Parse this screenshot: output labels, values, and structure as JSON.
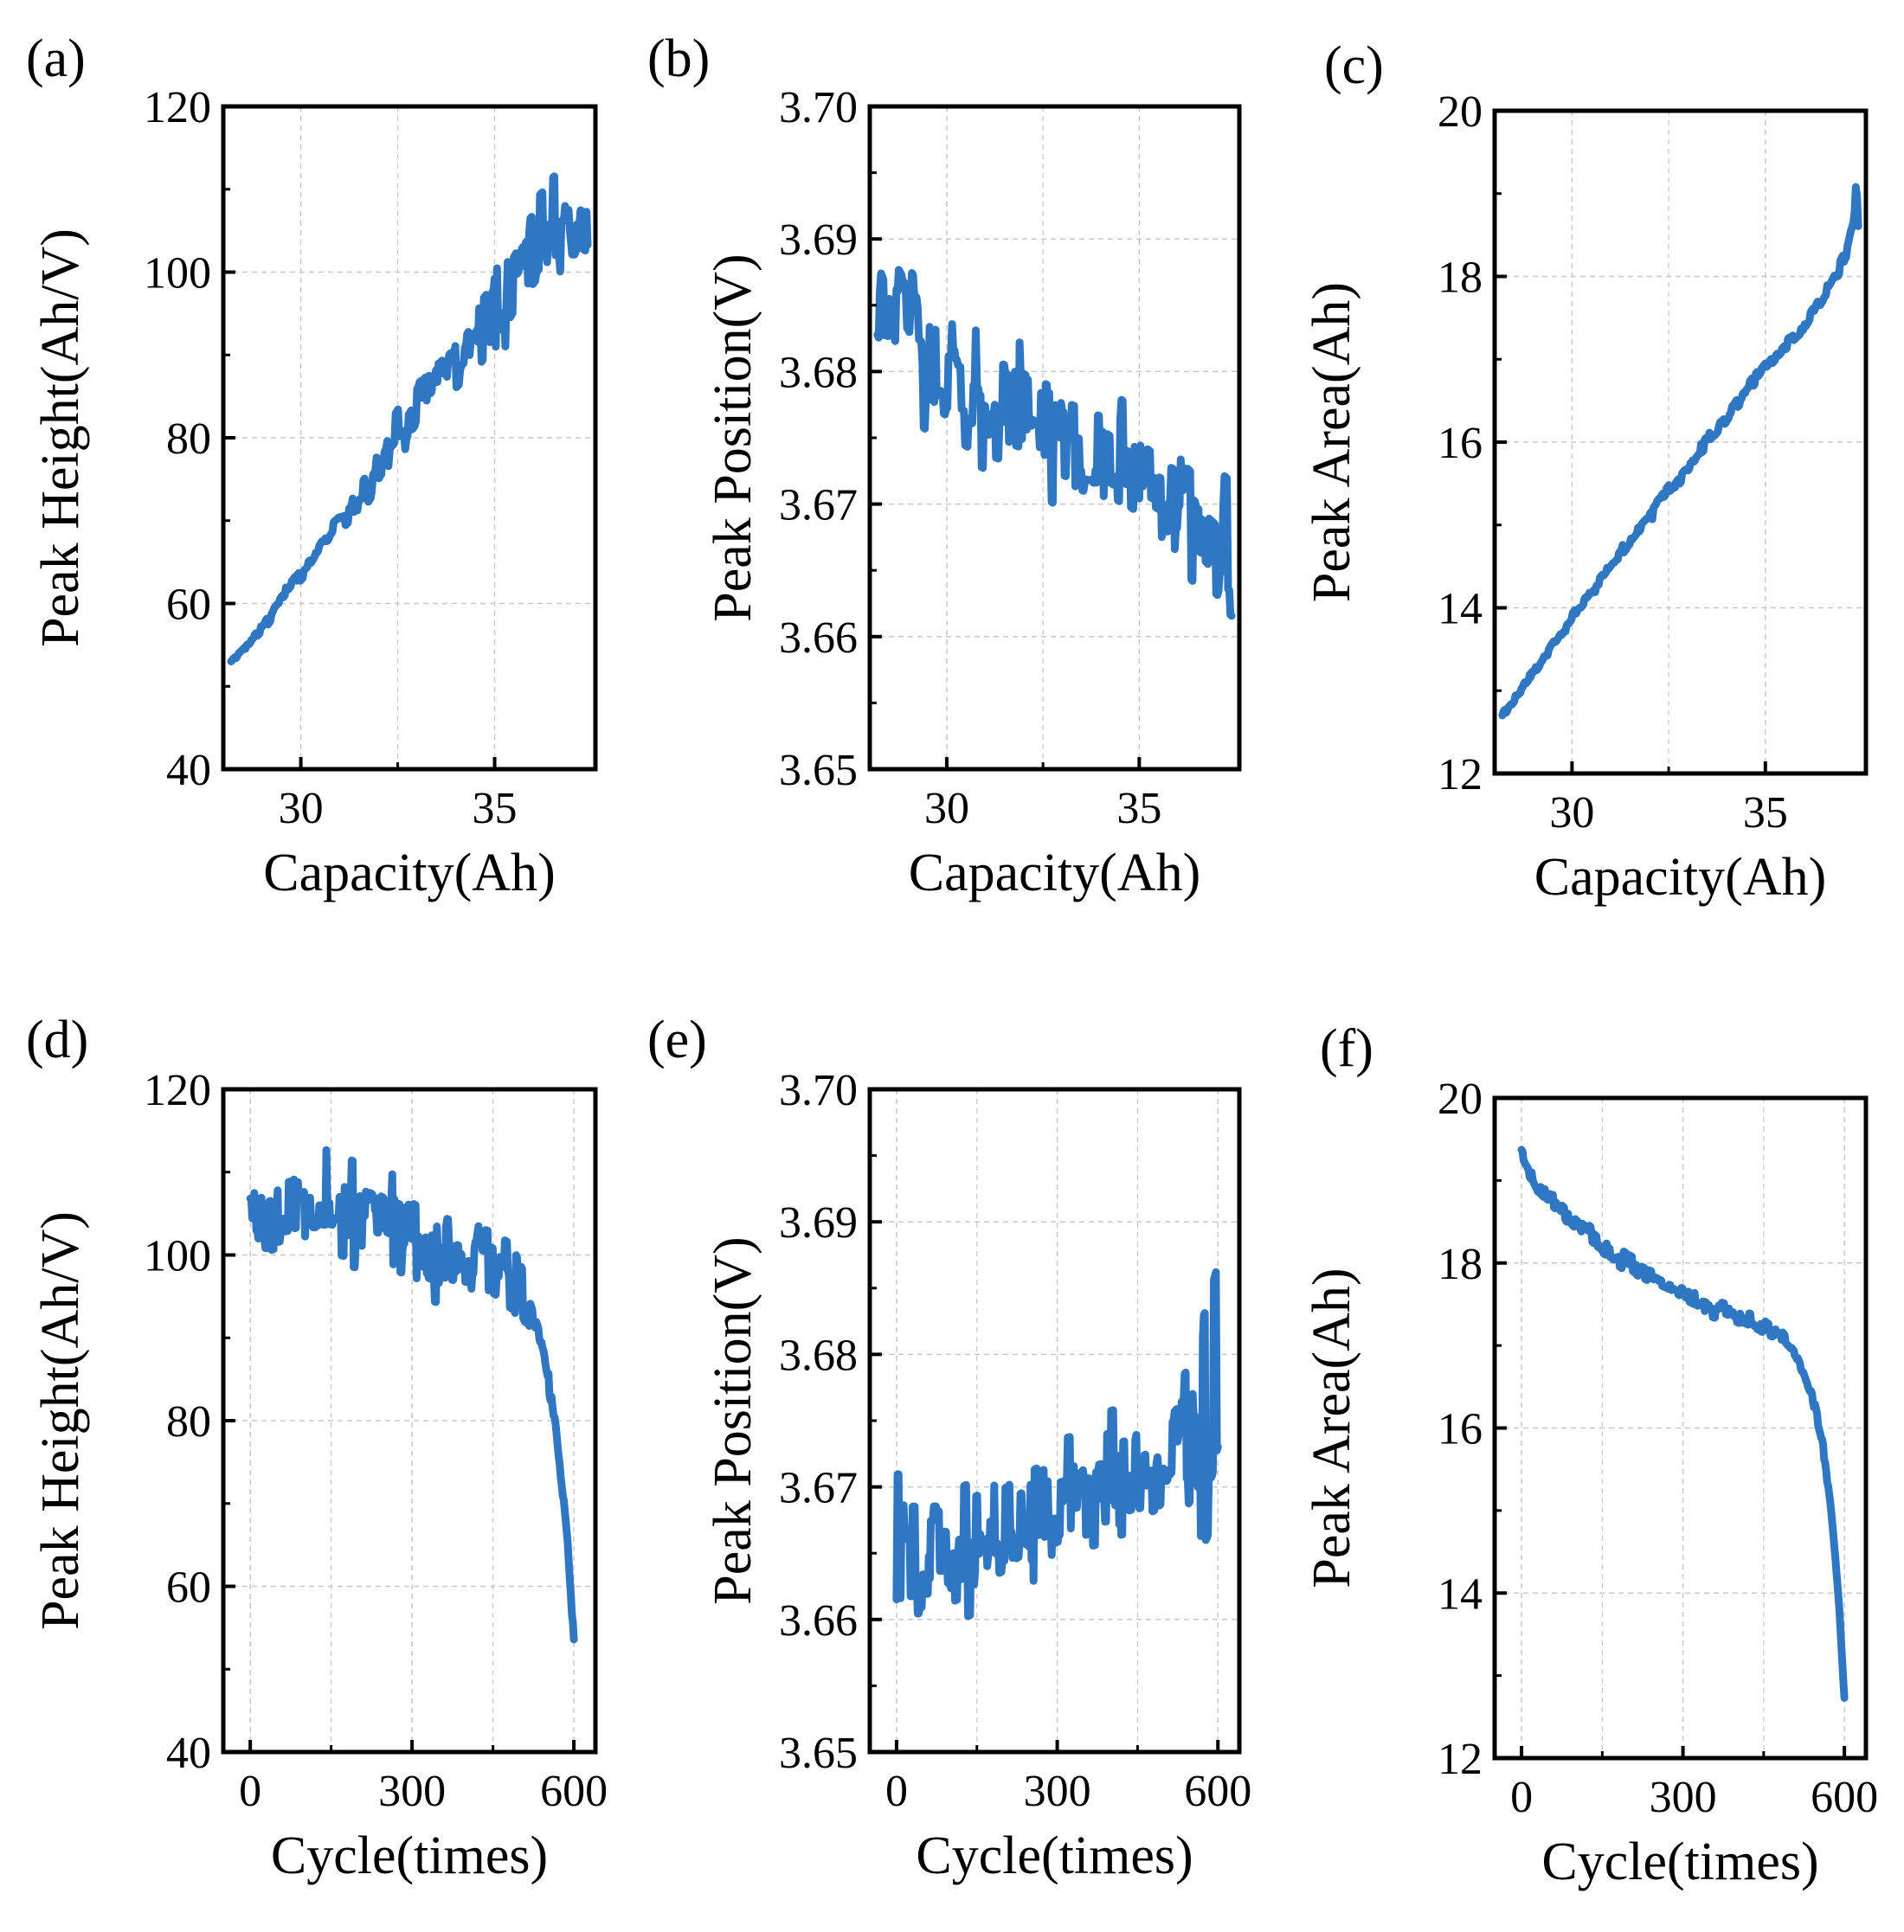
{
  "figure": {
    "line_color": "#2f77c2",
    "axis_color": "#000000",
    "grid_color": "#c8c8c8"
  },
  "chart_data": [
    {
      "panel": "(a)",
      "type": "line",
      "xlabel": "Capacity(Ah)",
      "ylabel": "Peak Height(Ah/V)",
      "xlim": [
        28.0,
        37.6
      ],
      "ylim": [
        40,
        120
      ],
      "xticks": [
        30,
        35
      ],
      "xtick_labels": [
        "30",
        "35"
      ],
      "yticks": [
        40,
        60,
        80,
        100,
        120
      ],
      "ytick_labels": [
        "40",
        "60",
        "80",
        "100",
        "120"
      ],
      "decimals": 0,
      "grid": true,
      "series": [
        {
          "name": "Peak Height",
          "x_start": 28.2,
          "x_end": 37.4,
          "n": 300,
          "anchors": [
            [
              28.2,
              53
            ],
            [
              29.0,
              57
            ],
            [
              29.7,
              62
            ],
            [
              30.3,
              65
            ],
            [
              30.8,
              69
            ],
            [
              31.4,
              72
            ],
            [
              32.0,
              76
            ],
            [
              32.5,
              80
            ],
            [
              33.0,
              84
            ],
            [
              33.6,
              87
            ],
            [
              34.2,
              90
            ],
            [
              34.7,
              94
            ],
            [
              35.2,
              97
            ],
            [
              35.7,
              101
            ],
            [
              36.2,
              104
            ],
            [
              36.7,
              106
            ],
            [
              37.1,
              106
            ],
            [
              37.4,
              105
            ]
          ],
          "noise": [
            [
              28.2,
              0.5
            ],
            [
              31.0,
              1.5
            ],
            [
              32.0,
              4
            ],
            [
              34.5,
              6
            ],
            [
              35.5,
              9
            ],
            [
              37.4,
              9
            ]
          ],
          "seed": 11
        }
      ]
    },
    {
      "panel": "(b)",
      "type": "line",
      "xlabel": "Capacity(Ah)",
      "ylabel": "Peak Position(V)",
      "xlim": [
        28.0,
        37.6
      ],
      "ylim": [
        3.65,
        3.7
      ],
      "xticks": [
        30,
        35
      ],
      "xtick_labels": [
        "30",
        "35"
      ],
      "yticks": [
        3.65,
        3.66,
        3.67,
        3.68,
        3.69,
        3.7
      ],
      "ytick_labels": [
        "3.65",
        "3.66",
        "3.67",
        "3.68",
        "3.69",
        "3.70"
      ],
      "decimals": 3,
      "grid": true,
      "series": [
        {
          "name": "Peak Position",
          "x_start": 28.2,
          "x_end": 37.4,
          "n": 300,
          "anchors": [
            [
              28.2,
              3.688
            ],
            [
              28.6,
              3.685
            ],
            [
              29.2,
              3.682
            ],
            [
              30.0,
              3.68
            ],
            [
              31.0,
              3.678
            ],
            [
              32.0,
              3.677
            ],
            [
              33.0,
              3.675
            ],
            [
              34.0,
              3.674
            ],
            [
              35.0,
              3.672
            ],
            [
              36.0,
              3.67
            ],
            [
              37.0,
              3.667
            ],
            [
              37.4,
              3.666
            ]
          ],
          "noise": [
            [
              28.2,
              0.008
            ],
            [
              30.0,
              0.007
            ],
            [
              33.0,
              0.007
            ],
            [
              35.0,
              0.007
            ],
            [
              37.4,
              0.008
            ]
          ],
          "seed": 23
        }
      ]
    },
    {
      "panel": "(c)",
      "type": "line",
      "xlabel": "Capacity(Ah)",
      "ylabel": "Peak Area(Ah)",
      "xlim": [
        28.0,
        37.6
      ],
      "ylim": [
        12,
        20
      ],
      "xticks": [
        30,
        35
      ],
      "xtick_labels": [
        "30",
        "35"
      ],
      "yticks": [
        12,
        14,
        16,
        18,
        20
      ],
      "ytick_labels": [
        "12",
        "14",
        "16",
        "18",
        "20"
      ],
      "decimals": 2,
      "grid": true,
      "series": [
        {
          "name": "Peak Area",
          "x_start": 28.2,
          "x_end": 37.4,
          "n": 300,
          "anchors": [
            [
              28.2,
              12.7
            ],
            [
              29.0,
              13.2
            ],
            [
              30.0,
              13.9
            ],
            [
              31.0,
              14.5
            ],
            [
              32.0,
              15.1
            ],
            [
              33.0,
              15.7
            ],
            [
              34.0,
              16.3
            ],
            [
              35.0,
              16.9
            ],
            [
              36.0,
              17.4
            ],
            [
              36.7,
              17.9
            ],
            [
              37.1,
              18.3
            ],
            [
              37.3,
              18.7
            ],
            [
              37.35,
              19.2
            ],
            [
              37.4,
              18.6
            ]
          ],
          "noise": [
            [
              28.2,
              0.08
            ],
            [
              37.4,
              0.12
            ]
          ],
          "seed": 37
        }
      ]
    },
    {
      "panel": "(d)",
      "type": "line",
      "xlabel": "Cycle(times)",
      "ylabel": "Peak Height(Ah/V)",
      "xlim": [
        -50,
        640
      ],
      "ylim": [
        40,
        120
      ],
      "xticks": [
        0,
        300,
        600
      ],
      "xtick_labels": [
        "0",
        "300",
        "600"
      ],
      "yticks": [
        40,
        60,
        80,
        100,
        120
      ],
      "ytick_labels": [
        "40",
        "60",
        "80",
        "100",
        "120"
      ],
      "decimals": 0,
      "grid": true,
      "series": [
        {
          "name": "Peak Height",
          "x_start": 0,
          "x_end": 600,
          "n": 320,
          "anchors": [
            [
              0,
              104
            ],
            [
              50,
              105
            ],
            [
              100,
              106
            ],
            [
              150,
              106
            ],
            [
              200,
              105
            ],
            [
              260,
              103
            ],
            [
              320,
              101
            ],
            [
              380,
              100
            ],
            [
              440,
              99
            ],
            [
              490,
              97
            ],
            [
              520,
              93
            ],
            [
              540,
              89
            ],
            [
              560,
              82
            ],
            [
              575,
              74
            ],
            [
              590,
              64
            ],
            [
              600,
              53
            ]
          ],
          "noise": [
            [
              0,
              8
            ],
            [
              300,
              9
            ],
            [
              500,
              9
            ],
            [
              520,
              3
            ],
            [
              600,
              1
            ]
          ],
          "seed": 41
        }
      ]
    },
    {
      "panel": "(e)",
      "type": "line",
      "xlabel": "Cycle(times)",
      "ylabel": "Peak Position(V)",
      "xlim": [
        -50,
        640
      ],
      "ylim": [
        3.65,
        3.7
      ],
      "xticks": [
        0,
        300,
        600
      ],
      "xtick_labels": [
        "0",
        "300",
        "600"
      ],
      "yticks": [
        3.65,
        3.66,
        3.67,
        3.68,
        3.69,
        3.7
      ],
      "ytick_labels": [
        "3.65",
        "3.66",
        "3.67",
        "3.68",
        "3.69",
        "3.70"
      ],
      "decimals": 3,
      "grid": true,
      "series": [
        {
          "name": "Peak Position",
          "x_start": 0,
          "x_end": 600,
          "n": 320,
          "anchors": [
            [
              0,
              3.665
            ],
            [
              100,
              3.665
            ],
            [
              200,
              3.667
            ],
            [
              300,
              3.669
            ],
            [
              400,
              3.67
            ],
            [
              480,
              3.671
            ],
            [
              540,
              3.674
            ],
            [
              580,
              3.677
            ],
            [
              600,
              3.68
            ]
          ],
          "noise": [
            [
              0,
              0.008
            ],
            [
              300,
              0.007
            ],
            [
              500,
              0.008
            ],
            [
              600,
              0.016
            ]
          ],
          "seed": 53
        }
      ]
    },
    {
      "panel": "(f)",
      "type": "line",
      "xlabel": "Cycle(times)",
      "ylabel": "Peak Area(Ah)",
      "xlim": [
        -50,
        640
      ],
      "ylim": [
        12,
        20
      ],
      "xticks": [
        0,
        300,
        600
      ],
      "xtick_labels": [
        "0",
        "300",
        "600"
      ],
      "yticks": [
        12,
        14,
        16,
        18,
        20
      ],
      "ytick_labels": [
        "12",
        "14",
        "16",
        "18",
        "20"
      ],
      "decimals": 2,
      "grid": true,
      "series": [
        {
          "name": "Peak Area",
          "x_start": 0,
          "x_end": 600,
          "n": 320,
          "anchors": [
            [
              0,
              19.3
            ],
            [
              30,
              18.9
            ],
            [
              80,
              18.6
            ],
            [
              150,
              18.2
            ],
            [
              220,
              17.9
            ],
            [
              300,
              17.65
            ],
            [
              350,
              17.45
            ],
            [
              420,
              17.3
            ],
            [
              480,
              17.15
            ],
            [
              510,
              16.9
            ],
            [
              540,
              16.4
            ],
            [
              560,
              15.8
            ],
            [
              575,
              15.0
            ],
            [
              590,
              13.9
            ],
            [
              600,
              12.7
            ]
          ],
          "noise": [
            [
              0,
              0.15
            ],
            [
              400,
              0.15
            ],
            [
              500,
              0.1
            ],
            [
              600,
              0.05
            ]
          ],
          "seed": 67
        }
      ]
    }
  ]
}
